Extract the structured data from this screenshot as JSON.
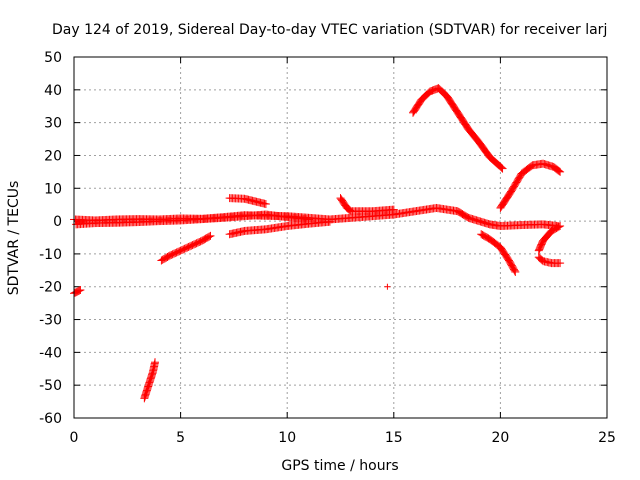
{
  "chart_data": {
    "type": "scatter",
    "title": "Day 124 of 2019, Sidereal Day-to-day VTEC variation (SDTVAR) for receiver larj",
    "xlabel": "GPS time / hours",
    "ylabel": "SDTVAR / TECUs",
    "xlim": [
      0,
      25
    ],
    "ylim": [
      -60,
      50
    ],
    "xticks": [
      0,
      5,
      10,
      15,
      20,
      25
    ],
    "yticks": [
      -60,
      -50,
      -40,
      -30,
      -20,
      -10,
      0,
      10,
      20,
      30,
      40,
      50
    ],
    "grid": true,
    "legend": "none",
    "marker": "+",
    "color": "#ff0000",
    "series": [
      {
        "points": [
          [
            0,
            0.5
          ],
          [
            1,
            0.2
          ],
          [
            2,
            0.5
          ],
          [
            3,
            0.6
          ],
          [
            4,
            0.5
          ],
          [
            5,
            0.8
          ],
          [
            6,
            0.7
          ],
          [
            7,
            1.2
          ],
          [
            8,
            1.8
          ],
          [
            9,
            1.6
          ],
          [
            10,
            1.5
          ],
          [
            11,
            1
          ],
          [
            12,
            0.5
          ],
          [
            13,
            1
          ],
          [
            14,
            1.5
          ],
          [
            15,
            2
          ],
          [
            16,
            3
          ],
          [
            17,
            4
          ],
          [
            18,
            3
          ],
          [
            18.5,
            1
          ],
          [
            19,
            0
          ],
          [
            19.5,
            -1
          ],
          [
            20,
            -1.5
          ],
          [
            21,
            -1.2
          ],
          [
            22,
            -1
          ],
          [
            22.7,
            -1.5
          ]
        ]
      },
      {
        "points": [
          [
            0.1,
            -1
          ],
          [
            1,
            -0.6
          ],
          [
            2,
            -0.5
          ],
          [
            3,
            -0.3
          ],
          [
            4,
            0
          ],
          [
            5,
            0.2
          ],
          [
            6,
            0.6
          ],
          [
            7,
            1
          ],
          [
            8,
            1.5
          ],
          [
            9,
            2
          ],
          [
            10,
            1.2
          ],
          [
            11,
            0.5
          ]
        ]
      },
      {
        "points": [
          [
            0,
            -22
          ],
          [
            0.15,
            -21.5
          ],
          [
            0.3,
            -21
          ]
        ]
      },
      {
        "points": [
          [
            3.3,
            -54
          ],
          [
            3.5,
            -50
          ],
          [
            3.7,
            -46
          ],
          [
            3.8,
            -43
          ]
        ]
      },
      {
        "points": [
          [
            4.1,
            -12
          ],
          [
            4.5,
            -10.5
          ],
          [
            5,
            -9
          ],
          [
            5.5,
            -7.5
          ],
          [
            6,
            -6
          ],
          [
            6.4,
            -4.5
          ]
        ]
      },
      {
        "points": [
          [
            7.3,
            7
          ],
          [
            8,
            6.8
          ],
          [
            8.5,
            6
          ],
          [
            9,
            5.2
          ]
        ]
      },
      {
        "points": [
          [
            7.3,
            -4
          ],
          [
            8,
            -3
          ],
          [
            9,
            -2.5
          ],
          [
            10,
            -1.5
          ],
          [
            11,
            -0.8
          ],
          [
            12,
            -0.2
          ]
        ]
      },
      {
        "points": [
          [
            12.5,
            7
          ],
          [
            12.8,
            4
          ],
          [
            13,
            3
          ],
          [
            14,
            3
          ],
          [
            15,
            3.5
          ]
        ]
      },
      {
        "points": [
          [
            14.7,
            -20
          ]
        ]
      },
      {
        "points": [
          [
            15.9,
            33
          ],
          [
            16.3,
            37
          ],
          [
            16.7,
            39.5
          ],
          [
            17.1,
            40.5
          ],
          [
            17.5,
            38
          ],
          [
            18,
            33
          ],
          [
            18.5,
            28
          ],
          [
            19,
            24
          ],
          [
            19.5,
            19.5
          ],
          [
            20.1,
            16
          ]
        ]
      },
      {
        "points": [
          [
            19.1,
            -4
          ],
          [
            19.5,
            -5.5
          ],
          [
            20,
            -8
          ],
          [
            20.4,
            -12
          ],
          [
            20.7,
            -15.5
          ]
        ]
      },
      {
        "points": [
          [
            20,
            4
          ],
          [
            20.5,
            9
          ],
          [
            21,
            14.5
          ],
          [
            21.5,
            17
          ],
          [
            22,
            17.5
          ],
          [
            22.5,
            16.5
          ],
          [
            22.8,
            15
          ]
        ]
      },
      {
        "points": [
          [
            21.8,
            -11
          ],
          [
            22,
            -12.2
          ],
          [
            22.4,
            -12.8
          ],
          [
            22.8,
            -12.8
          ]
        ]
      },
      {
        "points": [
          [
            21.8,
            -9
          ],
          [
            22,
            -6
          ],
          [
            22.4,
            -3
          ],
          [
            22.8,
            -1.5
          ]
        ]
      }
    ]
  }
}
